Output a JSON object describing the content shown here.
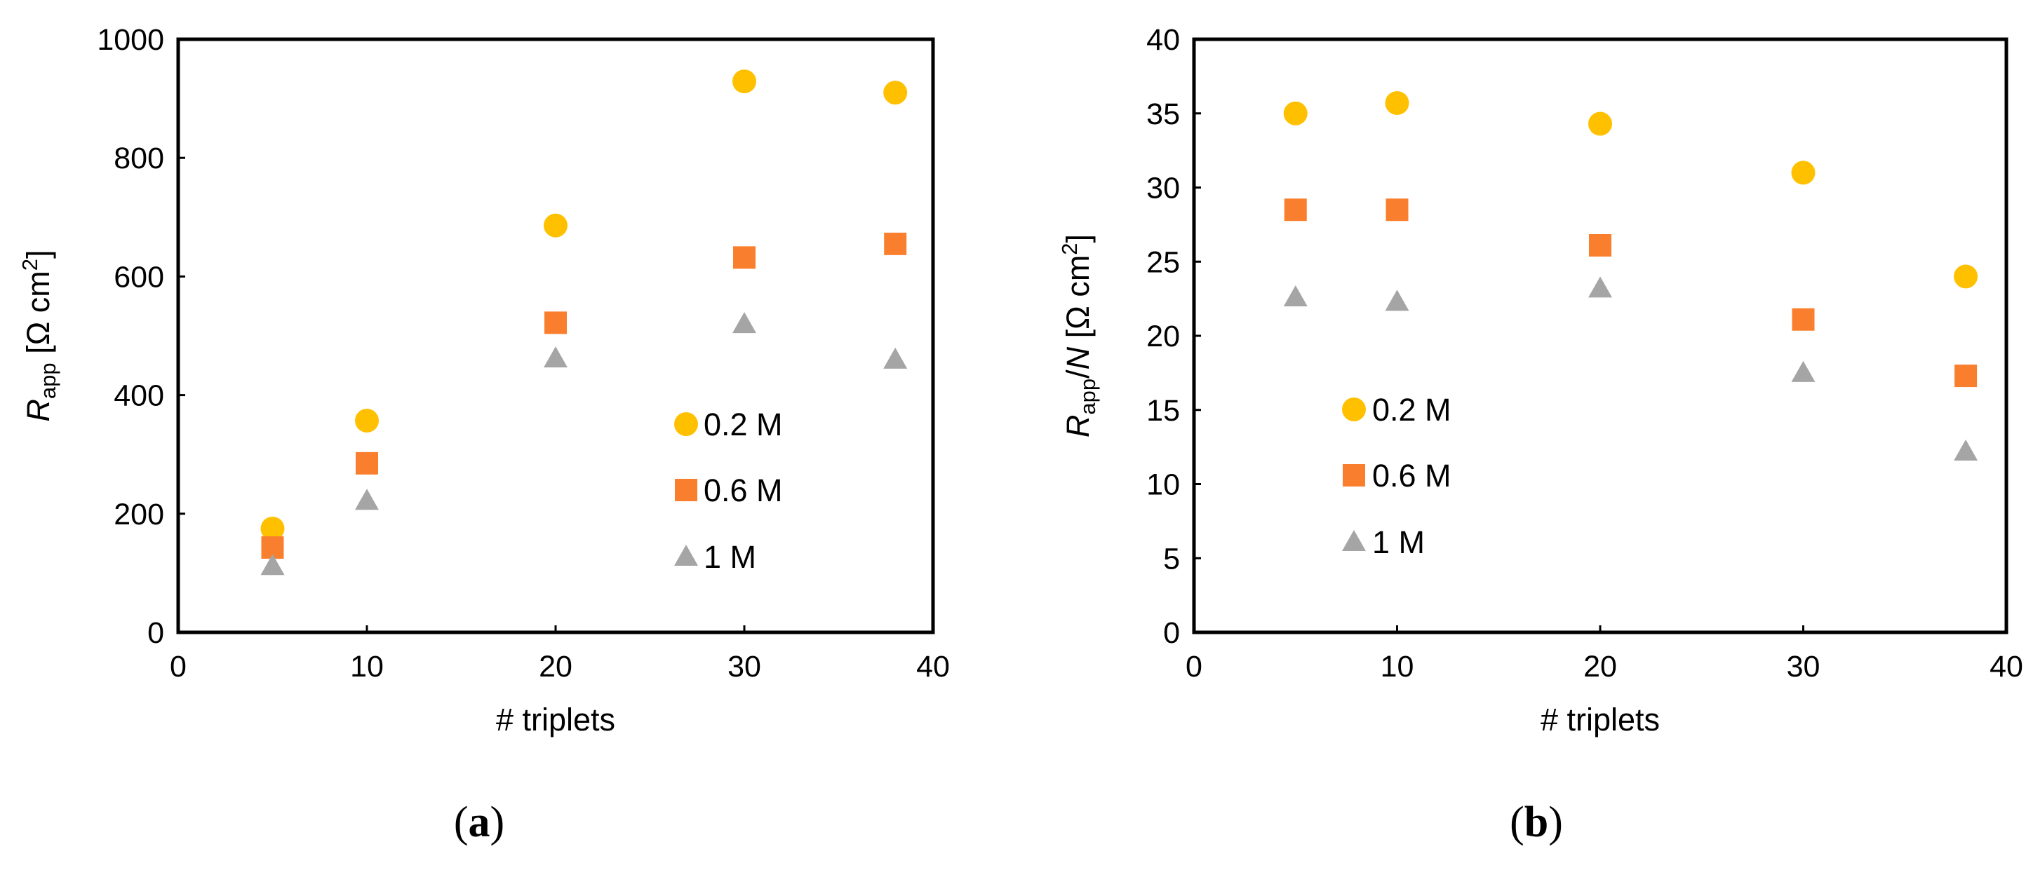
{
  "chart_data": [
    {
      "type": "scatter",
      "panel_label": {
        "open": "(",
        "letter": "a",
        "close": ")"
      },
      "title": "",
      "xlabel": "# triplets",
      "ylabel": {
        "main": "R",
        "sub": "app",
        "unit": " [Ω cm",
        "sup": "2",
        "close": "]"
      },
      "xlim": [
        0,
        40
      ],
      "ylim": [
        0,
        1000
      ],
      "xticks": [
        0,
        10,
        20,
        30,
        40
      ],
      "yticks": [
        0,
        200,
        400,
        600,
        800,
        1000
      ],
      "grid": false,
      "legend_position": "middle-right",
      "series": [
        {
          "name": "0.2 M",
          "marker": "circle",
          "color": "#FFC000",
          "points": [
            [
              5,
              175
            ],
            [
              10,
              357
            ],
            [
              20,
              686
            ],
            [
              30,
              929
            ],
            [
              38,
              910
            ]
          ]
        },
        {
          "name": "0.6 M",
          "marker": "square",
          "color": "#F97F2E",
          "points": [
            [
              5,
              143
            ],
            [
              10,
              285
            ],
            [
              20,
              522
            ],
            [
              30,
              632
            ],
            [
              38,
              655
            ]
          ]
        },
        {
          "name": "1 M",
          "marker": "triangle",
          "color": "#A5A5A5",
          "points": [
            [
              5,
              112
            ],
            [
              10,
              222
            ],
            [
              20,
              462
            ],
            [
              30,
              520
            ],
            [
              38,
              460
            ]
          ]
        }
      ]
    },
    {
      "type": "scatter",
      "panel_label": {
        "open": "(",
        "letter": "b",
        "close": ")"
      },
      "title": "",
      "xlabel": "# triplets",
      "ylabel": {
        "main": "R",
        "sub": "app",
        "slash": "/",
        "n": "N",
        "unit": " [Ω cm",
        "sup": "2",
        "close": "]"
      },
      "xlim": [
        0,
        40
      ],
      "ylim": [
        0,
        40
      ],
      "xticks": [
        0,
        10,
        20,
        30,
        40
      ],
      "yticks": [
        0,
        5,
        10,
        15,
        20,
        25,
        30,
        35,
        40
      ],
      "grid": false,
      "legend_position": "middle-left",
      "series": [
        {
          "name": "0.2 M",
          "marker": "circle",
          "color": "#FFC000",
          "points": [
            [
              5,
              35.0
            ],
            [
              10,
              35.7
            ],
            [
              20,
              34.3
            ],
            [
              30,
              31.0
            ],
            [
              38,
              24.0
            ]
          ]
        },
        {
          "name": "0.6 M",
          "marker": "square",
          "color": "#F97F2E",
          "points": [
            [
              5,
              28.5
            ],
            [
              10,
              28.5
            ],
            [
              20,
              26.1
            ],
            [
              30,
              21.1
            ],
            [
              38,
              17.3
            ]
          ]
        },
        {
          "name": "1 M",
          "marker": "triangle",
          "color": "#A5A5A5",
          "points": [
            [
              5,
              22.6
            ],
            [
              10,
              22.3
            ],
            [
              20,
              23.2
            ],
            [
              30,
              17.5
            ],
            [
              38,
              12.2
            ]
          ]
        }
      ]
    }
  ]
}
